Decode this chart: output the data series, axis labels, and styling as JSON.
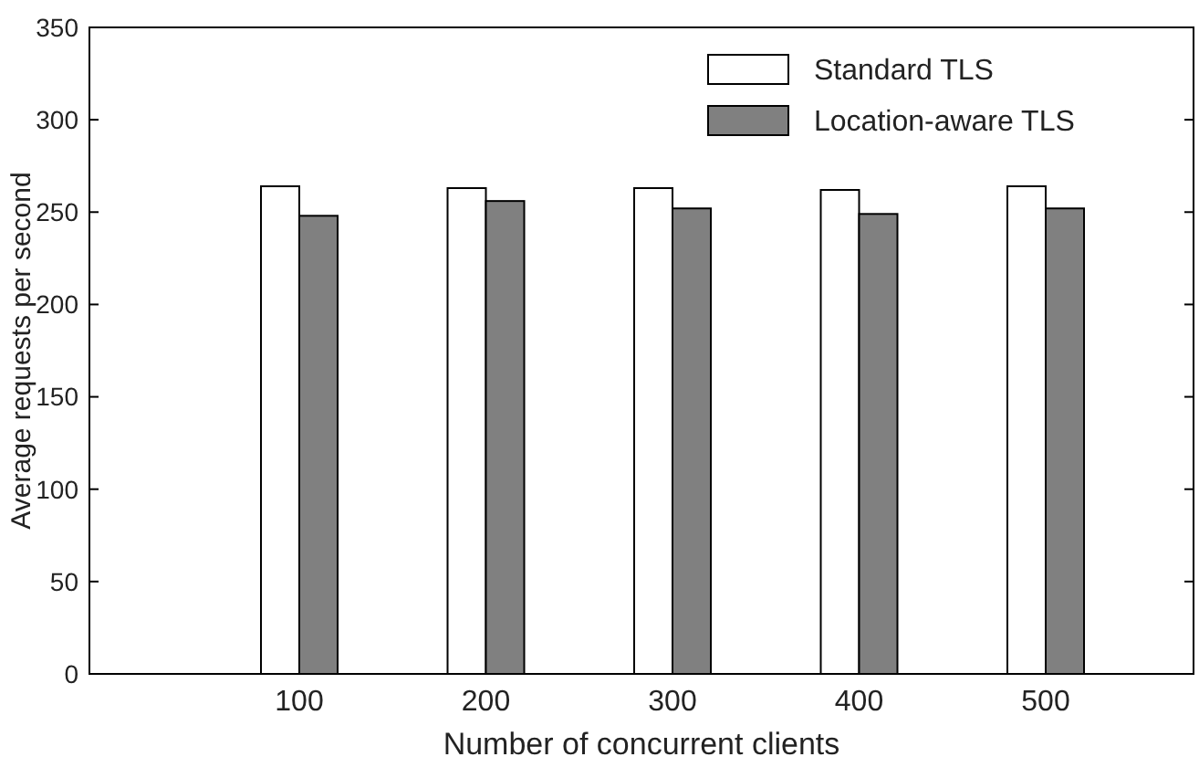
{
  "chart_data": {
    "type": "bar",
    "xlabel": "Number of concurrent clients",
    "ylabel": "Average requests per second",
    "categories": [
      "100",
      "200",
      "300",
      "400",
      "500"
    ],
    "series": [
      {
        "name": "Standard TLS",
        "color": "#ffffff",
        "values": [
          264,
          263,
          263,
          262,
          264
        ]
      },
      {
        "name": "Location-aware TLS",
        "color": "#808080",
        "values": [
          248,
          256,
          252,
          249,
          252
        ]
      }
    ],
    "ylim": [
      0,
      350
    ],
    "yticks": [
      0,
      50,
      100,
      150,
      200,
      250,
      300,
      350
    ],
    "legend": "top right"
  }
}
